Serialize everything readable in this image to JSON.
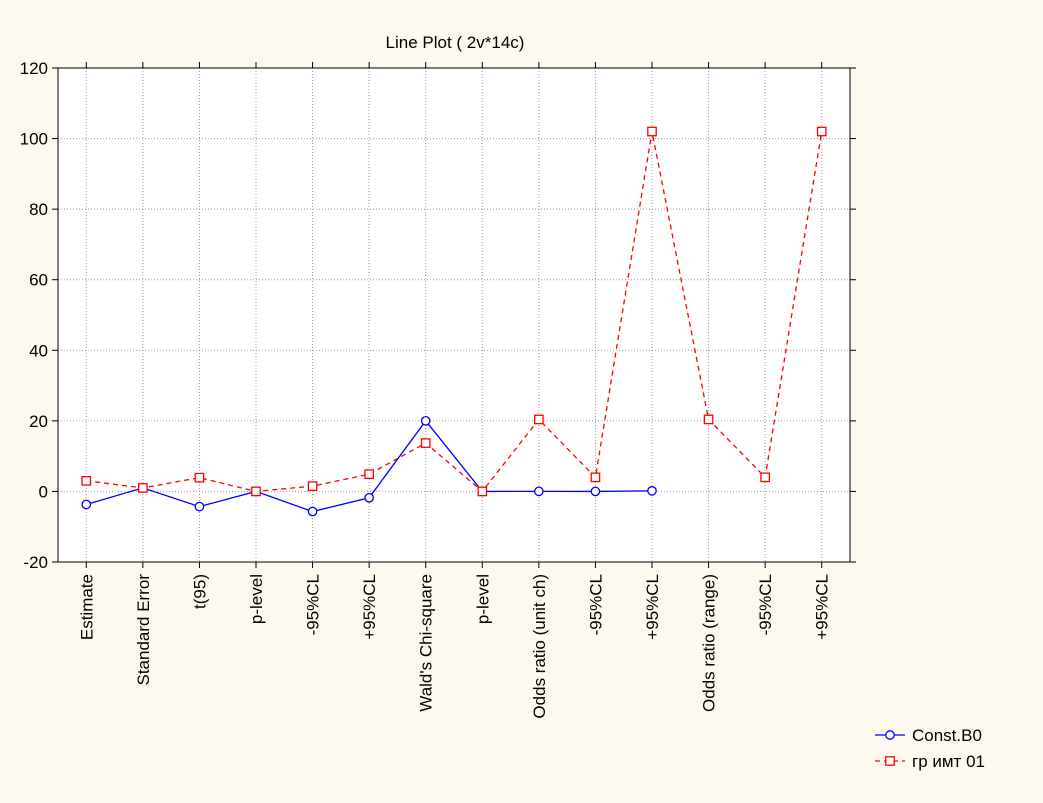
{
  "chart_data": {
    "type": "line",
    "title": "Line Plot ( 2v*14c)",
    "xlabel": "",
    "ylabel": "",
    "categories": [
      "Estimate",
      "Standard Error",
      "t(95)",
      "p-level",
      "-95%CL",
      "+95%CL",
      "Wald's Chi-square",
      "p-level",
      "Odds ratio (unit ch)",
      "-95%CL",
      "+95%CL",
      "Odds ratio (range)",
      "-95%CL",
      "+95%CL"
    ],
    "ylim": [
      -20,
      120
    ],
    "yticks": [
      -20,
      0,
      20,
      40,
      60,
      80,
      100,
      120
    ],
    "grid": true,
    "legend_position": "bottom-right",
    "series": [
      {
        "name": "Const.B0",
        "color": "#0000ff",
        "line_style": "solid",
        "marker": "circle",
        "values": [
          -3.7,
          1.0,
          -4.3,
          0.0,
          -5.7,
          -1.8,
          20.0,
          0.0,
          0.02,
          0.004,
          0.16,
          null,
          null,
          null
        ]
      },
      {
        "name": "гр имт 01",
        "color": "#ff0000",
        "line_style": "dashed",
        "marker": "square",
        "values": [
          3.0,
          1.0,
          3.9,
          0.0,
          1.5,
          4.9,
          13.7,
          0.0,
          20.4,
          4.0,
          102.0,
          20.4,
          4.0,
          102.0
        ]
      }
    ]
  }
}
